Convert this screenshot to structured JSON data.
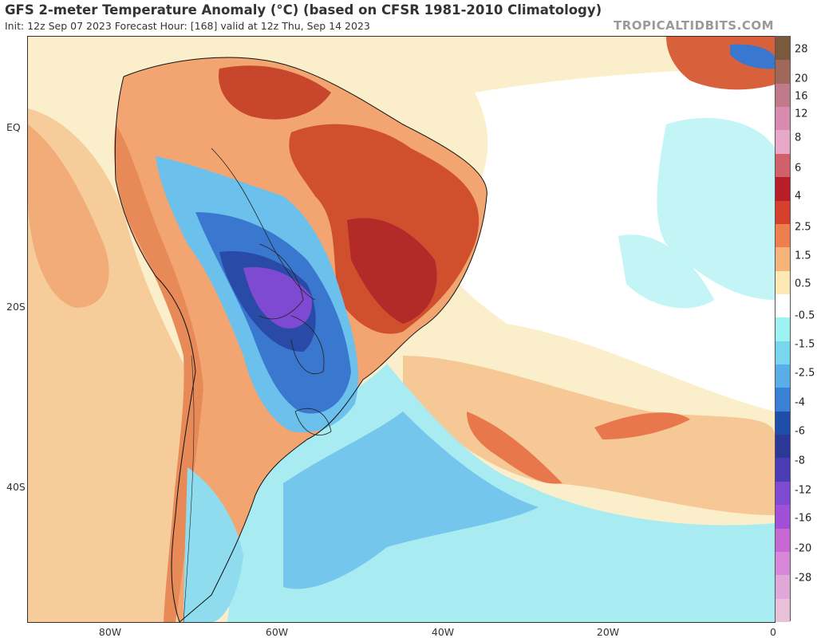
{
  "header": {
    "title": "GFS 2-meter Temperature Anomaly (°C) (based on CFSR 1981-2010 Climatology)",
    "subtitle": "Init: 12z Sep 07 2023   Forecast Hour: [168]   valid at 12z Thu, Sep 14 2023",
    "brand": "TROPICALTIDBITS.COM"
  },
  "axes": {
    "lat_labels": [
      "EQ",
      "20S",
      "40S"
    ],
    "lon_labels": [
      "80W",
      "60W",
      "40W",
      "20W",
      "0"
    ]
  },
  "colorbar": {
    "labels": [
      "28",
      "20",
      "16",
      "12",
      "8",
      "6",
      "4",
      "2.5",
      "1.5",
      "0.5",
      "-0.5",
      "-1.5",
      "-2.5",
      "-4",
      "-6",
      "-8",
      "-12",
      "-16",
      "-20",
      "-28"
    ],
    "colors": [
      "#7a5a3a",
      "#a0685a",
      "#c07a8a",
      "#d88ab0",
      "#e8a8c8",
      "#d0606a",
      "#b81e28",
      "#d8402e",
      "#ee7e4e",
      "#f6b47a",
      "#fde9b4",
      "#ffffff",
      "#9ef2f2",
      "#78d6ee",
      "#5aaee8",
      "#3a80d4",
      "#1e4eaa",
      "#2c3896",
      "#4c3cb4",
      "#7e4ad2",
      "#a050d6",
      "#c868d4",
      "#d888d8",
      "#e0a8d8",
      "#e8c0d8"
    ]
  },
  "map": {
    "palette": {
      "ocean_neutral": "#fbeecb",
      "warm_light": "#f6c896",
      "warm": "#ee8e5c",
      "hot": "#cf4a30",
      "hot_deep": "#b32a28",
      "cool_light": "#a8ecf2",
      "cool": "#6cc0ec",
      "cold": "#3a78d0",
      "cold_deep": "#2a4aa8",
      "very_cold": "#7e4ad2",
      "near_zero": "#ffffff"
    }
  }
}
